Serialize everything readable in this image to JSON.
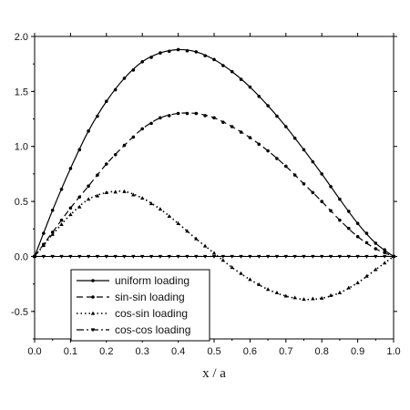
{
  "chart_data": {
    "type": "line",
    "xlabel": "x / a",
    "ylabel": "",
    "title": "",
    "xlim": [
      0.0,
      1.0
    ],
    "ylim": [
      -0.75,
      2.0
    ],
    "x_ticks": [
      "0.0",
      "0.1",
      "0.2",
      "0.3",
      "0.4",
      "0.5",
      "0.6",
      "0.7",
      "0.8",
      "0.9",
      "1.0"
    ],
    "x_tick_values": [
      0.0,
      0.1,
      0.2,
      0.3,
      0.4,
      0.5,
      0.6,
      0.7,
      0.8,
      0.9,
      1.0
    ],
    "y_ticks": [
      "-0.5",
      "0.0",
      "0.5",
      "1.0",
      "1.5",
      "2.0"
    ],
    "y_tick_values": [
      -0.5,
      0.0,
      0.5,
      1.0,
      1.5,
      2.0
    ],
    "grid": false,
    "legend_position": "bottom-left",
    "x": [
      0.0,
      0.05,
      0.1,
      0.15,
      0.2,
      0.25,
      0.3,
      0.35,
      0.4,
      0.45,
      0.5,
      0.55,
      0.6,
      0.65,
      0.7,
      0.75,
      0.8,
      0.85,
      0.9,
      0.95,
      1.0
    ],
    "series": [
      {
        "name": "uniform loading",
        "marker": "circle",
        "dash": "solid",
        "values": [
          0.0,
          0.42,
          0.8,
          1.14,
          1.41,
          1.62,
          1.77,
          1.85,
          1.88,
          1.86,
          1.79,
          1.68,
          1.54,
          1.37,
          1.18,
          0.97,
          0.75,
          0.52,
          0.3,
          0.12,
          0.0
        ]
      },
      {
        "name": "sin-sin loading",
        "marker": "circle",
        "dash": "dashed",
        "values": [
          0.0,
          0.22,
          0.44,
          0.64,
          0.84,
          1.01,
          1.16,
          1.26,
          1.3,
          1.3,
          1.26,
          1.18,
          1.08,
          0.96,
          0.82,
          0.66,
          0.5,
          0.33,
          0.18,
          0.07,
          0.0
        ]
      },
      {
        "name": "cos-sin loading",
        "marker": "triangle-up",
        "dash": "dotted",
        "values": [
          0.0,
          0.2,
          0.38,
          0.52,
          0.58,
          0.59,
          0.53,
          0.43,
          0.3,
          0.16,
          0.03,
          -0.1,
          -0.21,
          -0.3,
          -0.36,
          -0.39,
          -0.38,
          -0.33,
          -0.24,
          -0.12,
          0.0
        ]
      },
      {
        "name": "cos-cos loading",
        "marker": "triangle-down",
        "dash": "dashdot",
        "values": [
          0.0,
          0.0,
          0.0,
          0.0,
          0.0,
          0.0,
          0.0,
          0.0,
          0.0,
          0.0,
          0.0,
          0.0,
          0.0,
          0.0,
          0.0,
          0.0,
          0.0,
          0.0,
          0.0,
          0.0,
          0.0
        ]
      }
    ]
  }
}
